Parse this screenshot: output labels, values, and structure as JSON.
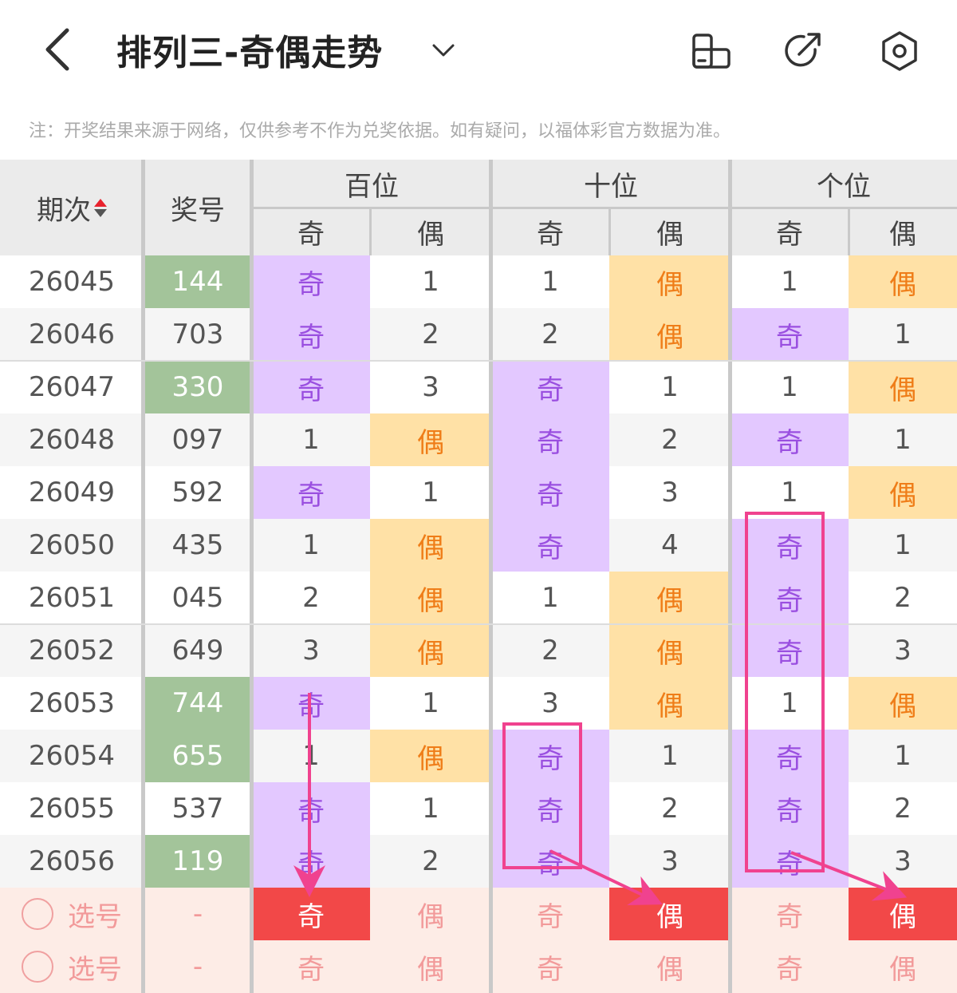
{
  "header": {
    "title": "排列三-奇偶走势",
    "back_icon": "chevron-left-icon",
    "dropdown_icon": "chevron-down-icon",
    "icons": [
      "phone-rotate-icon",
      "share-icon",
      "settings-icon"
    ]
  },
  "notice": "注：开奖结果来源于网络，仅供参考不作为兑奖依据。如有疑问，以福体彩官方数据为准。",
  "table": {
    "col_issue": "期次",
    "col_number": "奖号",
    "groups": [
      "百位",
      "十位",
      "个位"
    ],
    "sub": {
      "odd": "奇",
      "even": "偶"
    },
    "rows": [
      {
        "issue": "26045",
        "number": "144",
        "hl": true,
        "cells": [
          "奇",
          "1",
          "1",
          "偶",
          "1",
          "偶"
        ]
      },
      {
        "issue": "26046",
        "number": "703",
        "hl": false,
        "cells": [
          "奇",
          "2",
          "2",
          "偶",
          "奇",
          "1"
        ]
      },
      {
        "issue": "26047",
        "number": "330",
        "hl": true,
        "cells": [
          "奇",
          "3",
          "奇",
          "1",
          "1",
          "偶"
        ]
      },
      {
        "issue": "26048",
        "number": "097",
        "hl": false,
        "cells": [
          "1",
          "偶",
          "奇",
          "2",
          "奇",
          "1"
        ]
      },
      {
        "issue": "26049",
        "number": "592",
        "hl": false,
        "cells": [
          "奇",
          "1",
          "奇",
          "3",
          "1",
          "偶"
        ]
      },
      {
        "issue": "26050",
        "number": "435",
        "hl": false,
        "cells": [
          "1",
          "偶",
          "奇",
          "4",
          "奇",
          "1"
        ]
      },
      {
        "issue": "26051",
        "number": "045",
        "hl": false,
        "cells": [
          "2",
          "偶",
          "1",
          "偶",
          "奇",
          "2"
        ]
      },
      {
        "issue": "26052",
        "number": "649",
        "hl": false,
        "cells": [
          "3",
          "偶",
          "2",
          "偶",
          "奇",
          "3"
        ]
      },
      {
        "issue": "26053",
        "number": "744",
        "hl": true,
        "cells": [
          "奇",
          "1",
          "3",
          "偶",
          "1",
          "偶"
        ]
      },
      {
        "issue": "26054",
        "number": "655",
        "hl": true,
        "cells": [
          "1",
          "偶",
          "奇",
          "1",
          "奇",
          "1"
        ]
      },
      {
        "issue": "26055",
        "number": "537",
        "hl": false,
        "cells": [
          "奇",
          "1",
          "奇",
          "2",
          "奇",
          "2"
        ]
      },
      {
        "issue": "26056",
        "number": "119",
        "hl": true,
        "cells": [
          "奇",
          "2",
          "奇",
          "3",
          "奇",
          "3"
        ]
      }
    ],
    "select_rows": [
      {
        "label": "选号",
        "number": "-",
        "cells": [
          "奇",
          "偶",
          "奇",
          "偶",
          "奇",
          "偶"
        ],
        "selected": [
          true,
          false,
          false,
          true,
          false,
          true
        ]
      },
      {
        "label": "选号",
        "number": "-",
        "cells": [
          "奇",
          "偶",
          "奇",
          "偶",
          "奇",
          "偶"
        ],
        "selected": [
          false,
          false,
          false,
          false,
          false,
          false
        ]
      }
    ]
  },
  "colors": {
    "odd_bg": "#e3c8ff",
    "odd_text": "#9a4fe0",
    "even_bg": "#ffe1a6",
    "even_text": "#ef7d18",
    "hit_bg": "#a3c49a",
    "selected_bg": "#f24848",
    "annotation": "#f0428f",
    "sort_up": "#e8222d"
  }
}
